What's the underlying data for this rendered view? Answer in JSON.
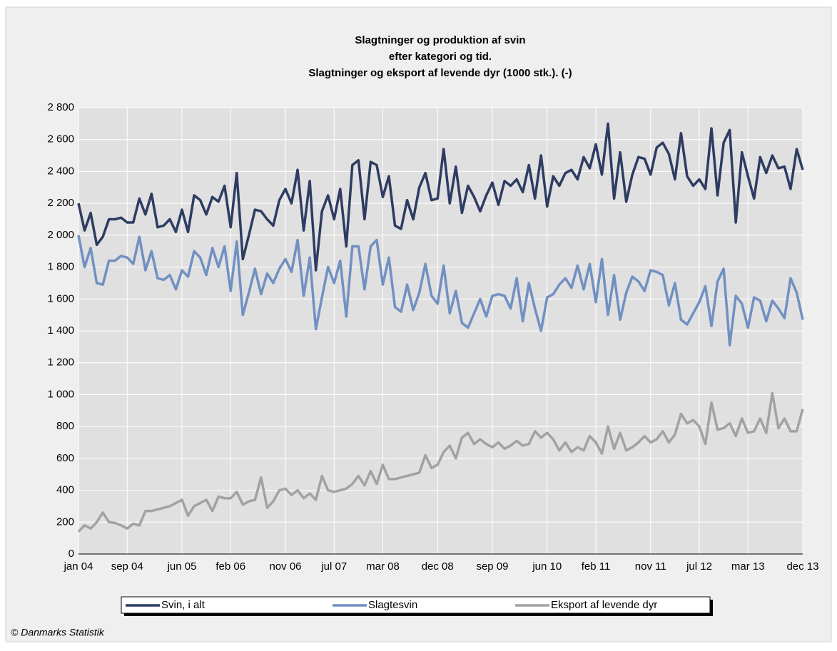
{
  "chart_data": {
    "type": "line",
    "title": [
      "Slagtninger og produktion af svin",
      "efter kategori og tid.",
      "Slagtninger og eksport af levende dyr (1000 stk.). (-)"
    ],
    "categories": [
      "jan 04",
      null,
      null,
      null,
      null,
      null,
      null,
      null,
      "sep 04",
      null,
      null,
      null,
      null,
      null,
      null,
      null,
      null,
      "jun 05",
      null,
      null,
      null,
      null,
      null,
      null,
      null,
      "feb 06",
      null,
      null,
      null,
      null,
      null,
      null,
      null,
      null,
      "nov 06",
      null,
      null,
      null,
      null,
      null,
      null,
      null,
      "jul 07",
      null,
      null,
      null,
      null,
      null,
      null,
      null,
      "mar 08",
      null,
      null,
      null,
      null,
      null,
      null,
      null,
      null,
      "dec 08",
      null,
      null,
      null,
      null,
      null,
      null,
      null,
      null,
      "sep 09",
      null,
      null,
      null,
      null,
      null,
      null,
      null,
      null,
      "jun 10",
      null,
      null,
      null,
      null,
      null,
      null,
      null,
      "feb 11",
      null,
      null,
      null,
      null,
      null,
      null,
      null,
      null,
      "nov 11",
      null,
      null,
      null,
      null,
      null,
      null,
      null,
      "jul 12",
      null,
      null,
      null,
      null,
      null,
      null,
      null,
      "mar 13",
      null,
      null,
      null,
      null,
      null,
      null,
      null,
      null,
      "dec 13"
    ],
    "series": [
      {
        "name": "Svin, i alt",
        "color": "#2e3c62",
        "values": [
          2200,
          2030,
          2140,
          1940,
          1990,
          2100,
          2100,
          2110,
          2080,
          2080,
          2230,
          2130,
          2260,
          2050,
          2060,
          2100,
          2020,
          2160,
          2020,
          2250,
          2220,
          2130,
          2240,
          2210,
          2310,
          2050,
          2390,
          1850,
          2000,
          2160,
          2150,
          2100,
          2060,
          2220,
          2290,
          2200,
          2410,
          2030,
          2340,
          1780,
          2150,
          2250,
          2100,
          2290,
          1930,
          2440,
          2470,
          2100,
          2460,
          2440,
          2240,
          2370,
          2060,
          2040,
          2220,
          2100,
          2300,
          2390,
          2220,
          2230,
          2540,
          2200,
          2430,
          2140,
          2310,
          2240,
          2150,
          2250,
          2330,
          2190,
          2340,
          2310,
          2350,
          2270,
          2440,
          2230,
          2500,
          2180,
          2370,
          2310,
          2390,
          2410,
          2350,
          2490,
          2420,
          2570,
          2380,
          2700,
          2230,
          2520,
          2210,
          2380,
          2490,
          2480,
          2380,
          2550,
          2580,
          2510,
          2350,
          2640,
          2370,
          2310,
          2350,
          2290,
          2670,
          2250,
          2580,
          2660,
          2080,
          2520,
          2370,
          2230,
          2490,
          2390,
          2500,
          2420,
          2430,
          2290,
          2540,
          2410
        ]
      },
      {
        "name": "Slagtesvin",
        "color": "#7190c2",
        "values": [
          2000,
          1800,
          1920,
          1700,
          1690,
          1840,
          1840,
          1870,
          1860,
          1820,
          1990,
          1780,
          1900,
          1730,
          1720,
          1750,
          1660,
          1780,
          1740,
          1900,
          1860,
          1750,
          1920,
          1800,
          1930,
          1650,
          1960,
          1500,
          1640,
          1790,
          1630,
          1760,
          1700,
          1790,
          1850,
          1770,
          1970,
          1620,
          1860,
          1410,
          1610,
          1800,
          1700,
          1840,
          1490,
          1930,
          1930,
          1660,
          1930,
          1970,
          1690,
          1860,
          1550,
          1520,
          1690,
          1530,
          1640,
          1820,
          1620,
          1570,
          1810,
          1510,
          1650,
          1450,
          1420,
          1510,
          1600,
          1490,
          1620,
          1630,
          1620,
          1540,
          1730,
          1460,
          1700,
          1540,
          1400,
          1610,
          1630,
          1690,
          1730,
          1670,
          1810,
          1660,
          1820,
          1580,
          1850,
          1500,
          1750,
          1470,
          1640,
          1740,
          1710,
          1650,
          1780,
          1770,
          1750,
          1560,
          1700,
          1470,
          1440,
          1510,
          1580,
          1680,
          1430,
          1710,
          1790,
          1310,
          1620,
          1570,
          1420,
          1610,
          1590,
          1460,
          1590,
          1540,
          1480,
          1730,
          1640,
          1470
        ]
      },
      {
        "name": "Eksport af levende dyr",
        "color": "#a2a2a2",
        "values": [
          140,
          180,
          160,
          200,
          260,
          200,
          195,
          180,
          160,
          190,
          180,
          270,
          270,
          280,
          290,
          300,
          320,
          340,
          240,
          300,
          320,
          340,
          270,
          360,
          350,
          350,
          390,
          310,
          330,
          340,
          480,
          290,
          330,
          400,
          410,
          370,
          400,
          350,
          380,
          340,
          490,
          400,
          390,
          400,
          410,
          440,
          490,
          430,
          520,
          440,
          560,
          470,
          470,
          480,
          490,
          500,
          510,
          620,
          540,
          560,
          640,
          680,
          600,
          730,
          760,
          690,
          720,
          690,
          670,
          700,
          660,
          680,
          710,
          680,
          690,
          770,
          730,
          760,
          720,
          650,
          700,
          640,
          670,
          650,
          740,
          700,
          630,
          800,
          660,
          760,
          650,
          670,
          700,
          740,
          700,
          720,
          770,
          700,
          750,
          880,
          820,
          840,
          800,
          690,
          950,
          780,
          790,
          820,
          740,
          850,
          760,
          770,
          850,
          760,
          1010,
          790,
          850,
          770,
          770,
          910
        ]
      }
    ],
    "ylim": [
      0,
      2800
    ],
    "yticks": [
      0,
      200,
      400,
      600,
      800,
      {
        "value": 1000,
        "label": "1 000"
      },
      {
        "value": 1200,
        "label": "1 200"
      },
      {
        "value": 1400,
        "label": "1 400"
      },
      {
        "value": 1600,
        "label": "1 600"
      },
      {
        "value": 1800,
        "label": "1 800"
      },
      {
        "value": 2000,
        "label": "2 000"
      },
      {
        "value": 2200,
        "label": "2 200"
      },
      {
        "value": 2400,
        "label": "2 400"
      },
      {
        "value": 2600,
        "label": "2 600"
      },
      {
        "value": 2800,
        "label": "2 800"
      }
    ],
    "grid": true,
    "legend": "bottom",
    "source": "© Danmarks Statistik"
  }
}
